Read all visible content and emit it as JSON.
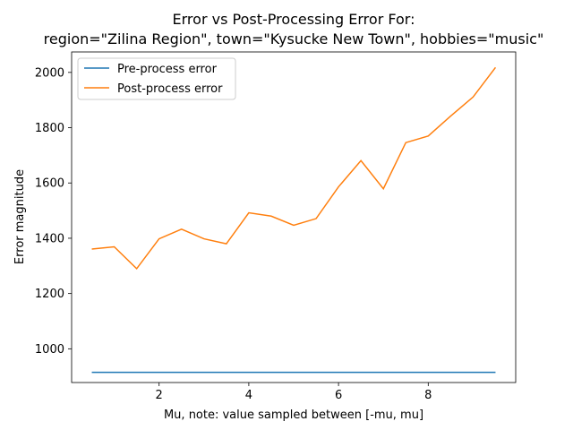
{
  "chart_data": {
    "type": "line",
    "title_line1": "Error vs Post-Processing Error For:",
    "title_line2": "region=\"Zilina Region\", town=\"Kysucke New Town\", hobbies=\"music\"",
    "xlabel": "Mu, note: value sampled between [-mu, mu]",
    "ylabel": "Error magnitude",
    "xlim": [
      0.05,
      9.95
    ],
    "ylim": [
      878,
      2074
    ],
    "xticks": [
      2,
      4,
      6,
      8
    ],
    "yticks": [
      1000,
      1200,
      1400,
      1600,
      1800,
      2000
    ],
    "grid": false,
    "legend_position": "top-left",
    "x": [
      0.5,
      1.0,
      1.5,
      2.0,
      2.5,
      3.0,
      3.5,
      4.0,
      4.5,
      5.0,
      5.5,
      6.0,
      6.5,
      7.0,
      7.5,
      8.0,
      8.5,
      9.0,
      9.5
    ],
    "series": [
      {
        "name": "Pre-process error",
        "color": "#1f77b4",
        "values": [
          915,
          915,
          915,
          915,
          915,
          915,
          915,
          915,
          915,
          915,
          915,
          915,
          915,
          915,
          915,
          915,
          915,
          915,
          915
        ]
      },
      {
        "name": "Post-process error",
        "color": "#ff7f0e",
        "values": [
          1361,
          1369,
          1290,
          1398,
          1433,
          1398,
          1380,
          1492,
          1480,
          1447,
          1471,
          1586,
          1681,
          1579,
          1746,
          1770,
          1842,
          1911,
          2018
        ]
      }
    ]
  }
}
